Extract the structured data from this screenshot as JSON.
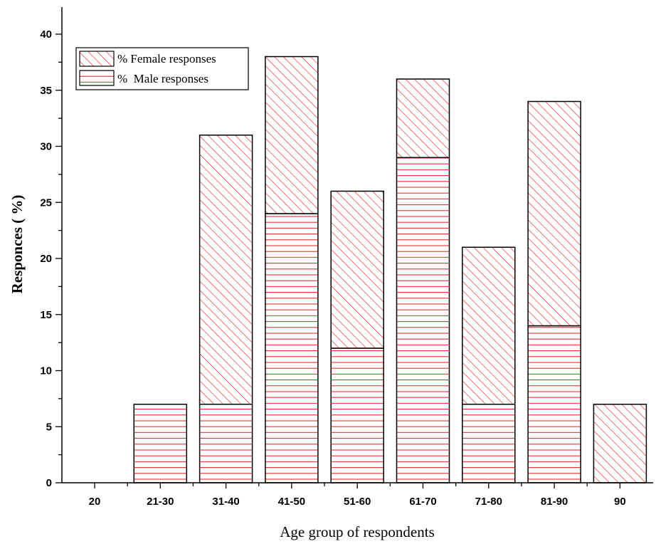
{
  "chart_data": {
    "type": "bar",
    "stacked": true,
    "categories": [
      "20",
      "21-30",
      "31-40",
      "41-50",
      "51-60",
      "61-70",
      "71-80",
      "81-90",
      "90"
    ],
    "series": [
      {
        "name": "%  Male responses",
        "values": [
          0,
          7,
          7,
          24,
          12,
          29,
          7,
          14,
          0
        ],
        "pattern": "horizontal-lines"
      },
      {
        "name": "% Female responses",
        "values": [
          0,
          0,
          24,
          14,
          14,
          7,
          14,
          20,
          7
        ],
        "pattern": "diagonal-hatch"
      }
    ],
    "xlabel": "Age group of respondents",
    "ylabel": "Responces ( %)",
    "ylim": [
      0,
      42
    ],
    "yticks": [
      0,
      5,
      10,
      15,
      20,
      25,
      30,
      35,
      40
    ],
    "grid": false,
    "legend_position": "top-left",
    "colors": {
      "pattern": "#e8191c",
      "outline": "#000000",
      "background": "#ffffff"
    }
  }
}
